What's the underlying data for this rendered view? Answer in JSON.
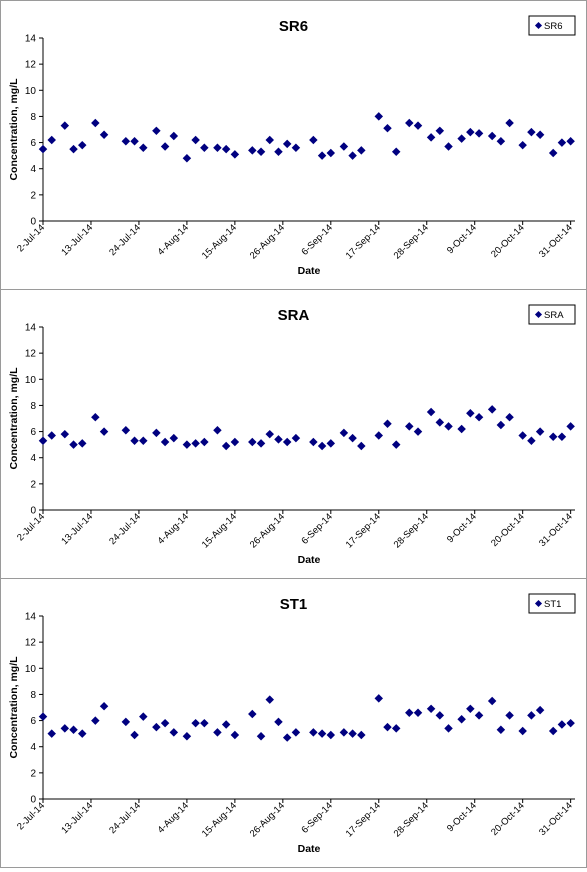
{
  "chart_data": [
    {
      "type": "scatter",
      "title": "SR6",
      "xlabel": "Date",
      "ylabel": "Concentration, mg/L",
      "ylim": [
        0,
        14
      ],
      "yticks": [
        "0",
        "2",
        "4",
        "6",
        "8",
        "10",
        "12",
        "14"
      ],
      "xlim": [
        "2014-07-02",
        "2014-11-01"
      ],
      "xticks": [
        "2-Jul-14",
        "13-Jul-14",
        "24-Jul-14",
        "4-Aug-14",
        "15-Aug-14",
        "26-Aug-14",
        "6-Sep-14",
        "17-Sep-14",
        "28-Sep-14",
        "9-Oct-14",
        "20-Oct-14",
        "31-Oct-14"
      ],
      "grid": false,
      "legend": "top-right",
      "marker_color": "#000080",
      "series": [
        {
          "name": "SR6",
          "x": [
            "2014-07-02",
            "2014-07-04",
            "2014-07-07",
            "2014-07-09",
            "2014-07-11",
            "2014-07-14",
            "2014-07-16",
            "2014-07-21",
            "2014-07-23",
            "2014-07-25",
            "2014-07-28",
            "2014-07-30",
            "2014-08-01",
            "2014-08-04",
            "2014-08-06",
            "2014-08-08",
            "2014-08-11",
            "2014-08-13",
            "2014-08-15",
            "2014-08-19",
            "2014-08-21",
            "2014-08-23",
            "2014-08-25",
            "2014-08-27",
            "2014-08-29",
            "2014-09-02",
            "2014-09-04",
            "2014-09-06",
            "2014-09-09",
            "2014-09-11",
            "2014-09-13",
            "2014-09-17",
            "2014-09-19",
            "2014-09-21",
            "2014-09-24",
            "2014-09-26",
            "2014-09-29",
            "2014-10-01",
            "2014-10-03",
            "2014-10-06",
            "2014-10-08",
            "2014-10-10",
            "2014-10-13",
            "2014-10-15",
            "2014-10-17",
            "2014-10-20",
            "2014-10-22",
            "2014-10-24",
            "2014-10-27",
            "2014-10-29",
            "2014-10-31"
          ],
          "y": [
            5.5,
            6.2,
            7.3,
            5.5,
            5.8,
            7.5,
            6.6,
            6.1,
            6.1,
            5.6,
            6.9,
            5.7,
            6.5,
            4.8,
            6.2,
            5.6,
            5.6,
            5.5,
            5.1,
            5.4,
            5.3,
            6.2,
            5.3,
            5.9,
            5.6,
            6.2,
            5.0,
            5.2,
            5.7,
            5.0,
            5.4,
            8.0,
            7.1,
            5.3,
            7.5,
            7.3,
            6.4,
            6.9,
            5.7,
            6.3,
            6.8,
            6.7,
            6.5,
            6.1,
            7.5,
            5.8,
            6.8,
            6.6,
            5.2,
            6.0,
            6.1
          ]
        }
      ]
    },
    {
      "type": "scatter",
      "title": "SRA",
      "xlabel": "Date",
      "ylabel": "Concentration, mg/L",
      "ylim": [
        0,
        14
      ],
      "yticks": [
        "0",
        "2",
        "4",
        "6",
        "8",
        "10",
        "12",
        "14"
      ],
      "xlim": [
        "2014-07-02",
        "2014-11-01"
      ],
      "xticks": [
        "2-Jul-14",
        "13-Jul-14",
        "24-Jul-14",
        "4-Aug-14",
        "15-Aug-14",
        "26-Aug-14",
        "6-Sep-14",
        "17-Sep-14",
        "28-Sep-14",
        "9-Oct-14",
        "20-Oct-14",
        "31-Oct-14"
      ],
      "grid": false,
      "legend": "top-right",
      "marker_color": "#000080",
      "series": [
        {
          "name": "SRA",
          "x": [
            "2014-07-02",
            "2014-07-04",
            "2014-07-07",
            "2014-07-09",
            "2014-07-11",
            "2014-07-14",
            "2014-07-16",
            "2014-07-21",
            "2014-07-23",
            "2014-07-25",
            "2014-07-28",
            "2014-07-30",
            "2014-08-01",
            "2014-08-04",
            "2014-08-06",
            "2014-08-08",
            "2014-08-11",
            "2014-08-13",
            "2014-08-15",
            "2014-08-19",
            "2014-08-21",
            "2014-08-23",
            "2014-08-25",
            "2014-08-27",
            "2014-08-29",
            "2014-09-02",
            "2014-09-04",
            "2014-09-06",
            "2014-09-09",
            "2014-09-11",
            "2014-09-13",
            "2014-09-17",
            "2014-09-19",
            "2014-09-21",
            "2014-09-24",
            "2014-09-26",
            "2014-09-29",
            "2014-10-01",
            "2014-10-03",
            "2014-10-06",
            "2014-10-08",
            "2014-10-10",
            "2014-10-13",
            "2014-10-15",
            "2014-10-17",
            "2014-10-20",
            "2014-10-22",
            "2014-10-24",
            "2014-10-27",
            "2014-10-29",
            "2014-10-31"
          ],
          "y": [
            5.3,
            5.7,
            5.8,
            5.0,
            5.1,
            7.1,
            6.0,
            6.1,
            5.3,
            5.3,
            5.9,
            5.2,
            5.5,
            5.0,
            5.1,
            5.2,
            6.1,
            4.9,
            5.2,
            5.2,
            5.1,
            5.8,
            5.4,
            5.2,
            5.5,
            5.2,
            4.9,
            5.1,
            5.9,
            5.5,
            4.9,
            5.7,
            6.6,
            5.0,
            6.4,
            6.0,
            7.5,
            6.7,
            6.4,
            6.2,
            7.4,
            7.1,
            7.7,
            6.5,
            7.1,
            5.7,
            5.3,
            6.0,
            5.6,
            5.6,
            6.4
          ]
        }
      ]
    },
    {
      "type": "scatter",
      "title": "ST1",
      "xlabel": "Date",
      "ylabel": "Concentration, mg/L",
      "ylim": [
        0,
        14
      ],
      "yticks": [
        "0",
        "2",
        "4",
        "6",
        "8",
        "10",
        "12",
        "14"
      ],
      "xlim": [
        "2014-07-02",
        "2014-11-01"
      ],
      "xticks": [
        "2-Jul-14",
        "13-Jul-14",
        "24-Jul-14",
        "4-Aug-14",
        "15-Aug-14",
        "26-Aug-14",
        "6-Sep-14",
        "17-Sep-14",
        "28-Sep-14",
        "9-Oct-14",
        "20-Oct-14",
        "31-Oct-14"
      ],
      "grid": false,
      "legend": "top-right",
      "marker_color": "#000080",
      "series": [
        {
          "name": "ST1",
          "x": [
            "2014-07-02",
            "2014-07-04",
            "2014-07-07",
            "2014-07-09",
            "2014-07-11",
            "2014-07-14",
            "2014-07-16",
            "2014-07-21",
            "2014-07-23",
            "2014-07-25",
            "2014-07-28",
            "2014-07-30",
            "2014-08-01",
            "2014-08-04",
            "2014-08-06",
            "2014-08-08",
            "2014-08-11",
            "2014-08-13",
            "2014-08-15",
            "2014-08-19",
            "2014-08-21",
            "2014-08-23",
            "2014-08-25",
            "2014-08-27",
            "2014-08-29",
            "2014-09-02",
            "2014-09-04",
            "2014-09-06",
            "2014-09-09",
            "2014-09-11",
            "2014-09-13",
            "2014-09-17",
            "2014-09-19",
            "2014-09-21",
            "2014-09-24",
            "2014-09-26",
            "2014-09-29",
            "2014-10-01",
            "2014-10-03",
            "2014-10-06",
            "2014-10-08",
            "2014-10-10",
            "2014-10-13",
            "2014-10-15",
            "2014-10-17",
            "2014-10-20",
            "2014-10-22",
            "2014-10-24",
            "2014-10-27",
            "2014-10-29",
            "2014-10-31"
          ],
          "y": [
            6.3,
            5.0,
            5.4,
            5.3,
            5.0,
            6.0,
            7.1,
            5.9,
            4.9,
            6.3,
            5.5,
            5.8,
            5.1,
            4.8,
            5.8,
            5.8,
            5.1,
            5.7,
            4.9,
            6.5,
            4.8,
            7.6,
            5.9,
            4.7,
            5.1,
            5.1,
            5.0,
            4.9,
            5.1,
            5.0,
            4.9,
            7.7,
            5.5,
            5.4,
            6.6,
            6.6,
            6.9,
            6.4,
            5.4,
            6.1,
            6.9,
            6.4,
            7.5,
            5.3,
            6.4,
            5.2,
            6.4,
            6.8,
            5.2,
            5.7,
            5.8
          ]
        }
      ]
    }
  ]
}
